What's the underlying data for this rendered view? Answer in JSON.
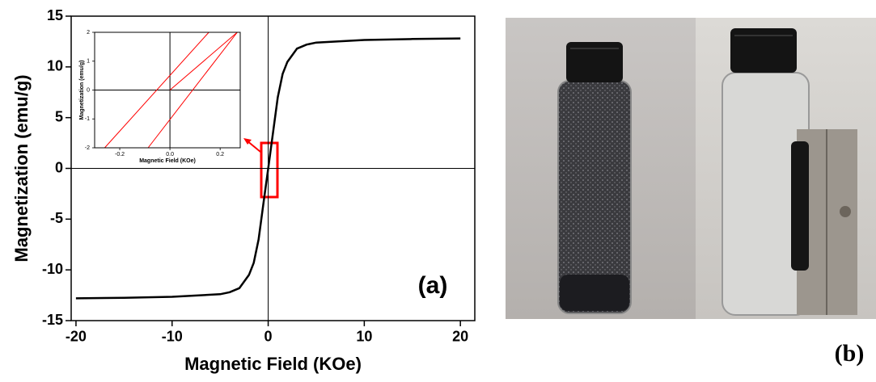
{
  "chart_data": [
    {
      "type": "line",
      "xlabel": "Magnetic Field (KOe)",
      "ylabel": "Magnetization (emu/g)",
      "xlim": [
        -20.5,
        21.5
      ],
      "ylim": [
        -15,
        15
      ],
      "xticks": [
        -20,
        -10,
        0,
        10,
        20
      ],
      "yticks": [
        -15,
        -10,
        -5,
        0,
        5,
        10,
        15
      ],
      "series": [
        {
          "color": "#000000",
          "x": [
            -20,
            -15,
            -10,
            -5,
            -4,
            -3,
            -2,
            -1.5,
            -1,
            -0.5,
            0,
            0.5,
            1,
            1.5,
            2,
            3,
            4,
            5,
            10,
            15,
            20
          ],
          "values": [
            -12.8,
            -12.75,
            -12.65,
            -12.4,
            -12.2,
            -11.8,
            -10.5,
            -9.3,
            -7,
            -3.5,
            0,
            3.5,
            7,
            9.3,
            10.5,
            11.8,
            12.2,
            12.4,
            12.65,
            12.75,
            12.8
          ]
        }
      ]
    },
    {
      "type": "line",
      "xlabel": "Magnetic Field (KOe)",
      "ylabel": "Magnetization (emu/g)",
      "xlim": [
        -0.3,
        0.28
      ],
      "ylim": [
        -2,
        2
      ],
      "xticks": [
        -0.2,
        {
          "value": 0,
          "label": "0.0"
        },
        0.2
      ],
      "yticks": [
        -2,
        -1,
        0,
        1,
        2
      ],
      "series": [
        {
          "color": "#ff0000",
          "x": [
            -0.26,
            0.155
          ],
          "values": [
            -2,
            2
          ]
        },
        {
          "color": "#ff0000",
          "x": [
            -0.087,
            0.268
          ],
          "values": [
            -2,
            2
          ]
        },
        {
          "color": "#ff0000",
          "x": [
            0,
            0.268
          ],
          "values": [
            0,
            2
          ]
        }
      ]
    }
  ],
  "panel_labels": [
    "(a)",
    "(b)"
  ]
}
